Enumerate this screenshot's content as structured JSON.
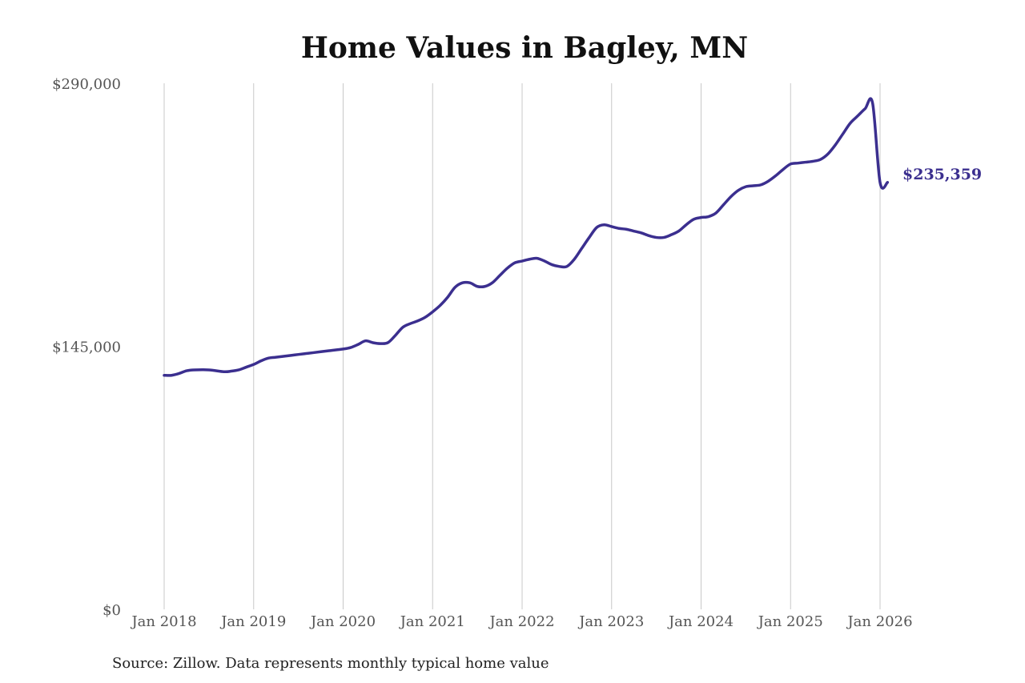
{
  "chart_data": {
    "type": "line",
    "title": "Home Values in Bagley, MN",
    "source": "Source: Zillow. Data represents monthly typical home value",
    "xlabel": "",
    "ylabel": "",
    "ylim": [
      0,
      290000
    ],
    "xlim": [
      "2018-01",
      "2026-01"
    ],
    "y_ticks": [
      {
        "value": 0,
        "label": "$0"
      },
      {
        "value": 145000,
        "label": "$145,000"
      },
      {
        "value": 290000,
        "label": "$290,000"
      }
    ],
    "x_ticks": [
      {
        "value": "2018-01",
        "label": "Jan 2018"
      },
      {
        "value": "2019-01",
        "label": "Jan 2019"
      },
      {
        "value": "2020-01",
        "label": "Jan 2020"
      },
      {
        "value": "2021-01",
        "label": "Jan 2021"
      },
      {
        "value": "2022-01",
        "label": "Jan 2022"
      },
      {
        "value": "2023-01",
        "label": "Jan 2023"
      },
      {
        "value": "2024-01",
        "label": "Jan 2024"
      },
      {
        "value": "2025-01",
        "label": "Jan 2025"
      },
      {
        "value": "2026-01",
        "label": "Jan 2026"
      }
    ],
    "grid": "vertical",
    "legend": "none",
    "line_color": "#3b2f8f",
    "end_label": "$235,359",
    "series": [
      {
        "x": [
          "2018-01",
          "2018-02",
          "2018-03",
          "2018-04",
          "2018-05",
          "2018-07",
          "2018-09",
          "2018-10",
          "2018-11",
          "2018-12",
          "2019-01",
          "2019-02",
          "2019-03",
          "2019-04",
          "2019-06",
          "2019-07",
          "2019-09",
          "2019-11",
          "2020-01",
          "2020-02",
          "2020-03",
          "2020-04",
          "2020-05",
          "2020-06",
          "2020-07",
          "2020-08",
          "2020-09",
          "2020-10",
          "2020-11",
          "2020-12",
          "2021-01",
          "2021-02",
          "2021-03",
          "2021-04",
          "2021-05",
          "2021-06",
          "2021-07",
          "2021-08",
          "2021-09",
          "2021-10",
          "2021-11",
          "2021-12",
          "2022-01",
          "2022-02",
          "2022-03",
          "2022-04",
          "2022-05",
          "2022-06",
          "2022-07",
          "2022-08",
          "2022-09",
          "2022-10",
          "2022-11",
          "2022-12",
          "2023-01",
          "2023-02",
          "2023-03",
          "2023-04",
          "2023-05",
          "2023-06",
          "2023-07",
          "2023-08",
          "2023-09",
          "2023-10",
          "2023-11",
          "2023-12",
          "2024-01",
          "2024-02",
          "2024-03",
          "2024-04",
          "2024-05",
          "2024-06",
          "2024-07",
          "2024-08",
          "2024-09",
          "2024-10",
          "2024-11",
          "2024-12",
          "2025-01",
          "2025-02",
          "2025-03",
          "2025-04",
          "2025-05",
          "2025-06",
          "2025-07",
          "2025-08",
          "2025-09",
          "2025-10",
          "2025-11",
          "2025-12",
          "2026-01",
          "2026-02"
        ],
        "values": [
          129000,
          129000,
          130000,
          131500,
          132000,
          132000,
          131000,
          131300,
          132000,
          133500,
          135000,
          137000,
          138500,
          139000,
          140000,
          140500,
          141500,
          142500,
          143500,
          144300,
          146000,
          148000,
          147000,
          146500,
          147000,
          151000,
          155500,
          157500,
          159000,
          161000,
          164000,
          167500,
          172000,
          177500,
          180000,
          180000,
          178000,
          178000,
          180000,
          184000,
          188000,
          191000,
          192000,
          193000,
          193500,
          192000,
          190000,
          189000,
          189000,
          193000,
          199000,
          205000,
          210500,
          212000,
          211000,
          210000,
          209500,
          208500,
          207500,
          206000,
          205000,
          205000,
          206500,
          208500,
          212000,
          215000,
          216000,
          216500,
          218500,
          223000,
          227500,
          231000,
          233000,
          233500,
          234000,
          236000,
          239000,
          242500,
          245500,
          246000,
          246500,
          247000,
          248000,
          251000,
          256000,
          262000,
          268000,
          272000,
          276000,
          279000,
          235359,
          235359
        ]
      }
    ]
  }
}
